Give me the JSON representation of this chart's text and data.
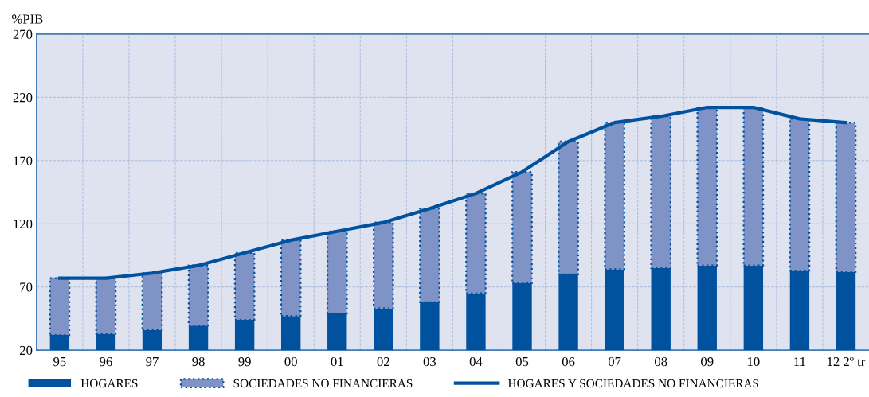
{
  "chart_data": {
    "type": "bar",
    "stacked": true,
    "ylabel": "%PIB",
    "categories": [
      "95",
      "96",
      "97",
      "98",
      "99",
      "00",
      "01",
      "02",
      "03",
      "04",
      "05",
      "06",
      "07",
      "08",
      "09",
      "10",
      "11",
      "12 2º tr"
    ],
    "series": [
      {
        "name": "HOGARES",
        "color": "#00529f",
        "values": [
          32,
          33,
          36,
          39.5,
          44,
          47,
          49,
          53,
          58,
          65,
          73,
          80,
          84,
          85,
          87,
          87,
          83,
          82
        ]
      },
      {
        "name": "SOCIEDADES NO FINANCIERAS",
        "color": "#7f93c6",
        "line_style": "dotted",
        "values": [
          45,
          44,
          45,
          47.5,
          53,
          60,
          65,
          68,
          74,
          79,
          88,
          105,
          116,
          120,
          125,
          125,
          120,
          118
        ]
      },
      {
        "name": "HOGARES Y SOCIEDADES NO FINANCIERAS",
        "type": "line",
        "color": "#00529f",
        "values": [
          77,
          77,
          81,
          87,
          97,
          107,
          114,
          121,
          132,
          144,
          161,
          185,
          200,
          205,
          212,
          212,
          203,
          200
        ]
      }
    ],
    "ylim": [
      20,
      270
    ],
    "yticks": [
      20,
      70,
      120,
      170,
      220,
      270
    ],
    "grid": true,
    "legend": "bottom"
  }
}
